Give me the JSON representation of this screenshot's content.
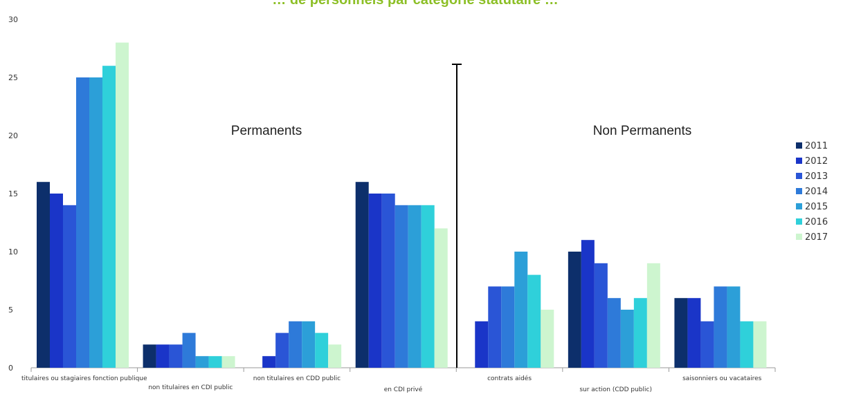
{
  "chart_data": {
    "type": "bar",
    "title_fragment": "… de personnels par catégorie statutaire …",
    "ylim": [
      0,
      30
    ],
    "yticks": [
      0,
      5,
      10,
      15,
      20,
      25,
      30
    ],
    "categories": [
      "titulaires ou stagiaires fonction publique",
      "non titulaires en CDI public",
      "non titulaires en CDD public",
      "en CDI privé",
      "contrats aidés",
      "sur action (CDD public)",
      "saisonniers ou vacataires"
    ],
    "series": [
      {
        "name": "2011",
        "color": "#0d2f6b",
        "values": [
          16,
          2,
          0,
          16,
          0,
          10,
          6
        ]
      },
      {
        "name": "2012",
        "color": "#1a35c8",
        "values": [
          15,
          2,
          1,
          15,
          4,
          11,
          6
        ]
      },
      {
        "name": "2013",
        "color": "#2a55d6",
        "values": [
          14,
          2,
          3,
          15,
          7,
          9,
          4
        ]
      },
      {
        "name": "2014",
        "color": "#2e7ad9",
        "values": [
          25,
          3,
          4,
          14,
          7,
          6,
          7
        ]
      },
      {
        "name": "2015",
        "color": "#2c9fd8",
        "values": [
          25,
          1,
          4,
          14,
          10,
          5,
          7
        ]
      },
      {
        "name": "2016",
        "color": "#2fd0da",
        "values": [
          26,
          1,
          3,
          14,
          8,
          6,
          4
        ]
      },
      {
        "name": "2017",
        "color": "#cdf5cf",
        "values": [
          28,
          1,
          2,
          12,
          5,
          9,
          4
        ]
      }
    ],
    "annotations": {
      "left_group": "Permanents",
      "right_group": "Non Permanents"
    },
    "legend_position": "right",
    "grid": false
  }
}
